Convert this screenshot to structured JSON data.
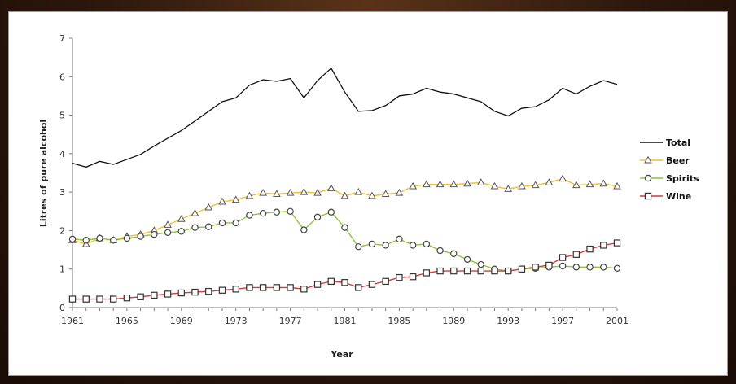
{
  "chart_data": {
    "type": "line",
    "xlabel": "Year",
    "ylabel": "Litres of pure alcohol",
    "xlim": [
      1961,
      2001
    ],
    "ylim": [
      0,
      7
    ],
    "x_ticks": [
      1961,
      1965,
      1969,
      1973,
      1977,
      1981,
      1985,
      1989,
      1993,
      1997,
      2001
    ],
    "y_ticks": [
      0,
      1,
      2,
      3,
      4,
      5,
      6,
      7
    ],
    "grid": false,
    "legend_position": "right",
    "x": [
      1961,
      1962,
      1963,
      1964,
      1965,
      1966,
      1967,
      1968,
      1969,
      1970,
      1971,
      1972,
      1973,
      1974,
      1975,
      1976,
      1977,
      1978,
      1979,
      1980,
      1981,
      1982,
      1983,
      1984,
      1985,
      1986,
      1987,
      1988,
      1989,
      1990,
      1991,
      1992,
      1993,
      1994,
      1995,
      1996,
      1997,
      1998,
      1999,
      2000,
      2001
    ],
    "series": [
      {
        "name": "Total",
        "color": "#111111",
        "marker": "none",
        "values": [
          3.75,
          3.65,
          3.8,
          3.72,
          3.85,
          3.98,
          4.2,
          4.4,
          4.6,
          4.85,
          5.1,
          5.35,
          5.45,
          5.78,
          5.92,
          5.88,
          5.95,
          5.45,
          5.9,
          6.22,
          5.6,
          5.1,
          5.12,
          5.25,
          5.5,
          5.55,
          5.7,
          5.6,
          5.55,
          5.45,
          5.35,
          5.1,
          4.98,
          5.18,
          5.22,
          5.4,
          5.7,
          5.55,
          5.75,
          5.9,
          5.8
        ]
      },
      {
        "name": "Beer",
        "color": "#f0c030",
        "marker": "triangle",
        "values": [
          1.75,
          1.65,
          1.8,
          1.75,
          1.85,
          1.9,
          2.0,
          2.15,
          2.3,
          2.45,
          2.6,
          2.75,
          2.8,
          2.9,
          2.98,
          2.95,
          2.98,
          3.0,
          2.98,
          3.1,
          2.9,
          3.0,
          2.9,
          2.95,
          2.98,
          3.15,
          3.2,
          3.2,
          3.2,
          3.22,
          3.25,
          3.15,
          3.08,
          3.15,
          3.18,
          3.25,
          3.35,
          3.18,
          3.2,
          3.22,
          3.15
        ]
      },
      {
        "name": "Spirits",
        "color": "#8cc63e",
        "marker": "circle",
        "values": [
          1.78,
          1.75,
          1.8,
          1.75,
          1.8,
          1.85,
          1.9,
          1.95,
          1.98,
          2.08,
          2.1,
          2.2,
          2.2,
          2.4,
          2.45,
          2.48,
          2.5,
          2.02,
          2.35,
          2.48,
          2.08,
          1.58,
          1.65,
          1.62,
          1.78,
          1.62,
          1.65,
          1.48,
          1.4,
          1.25,
          1.12,
          1.0,
          0.95,
          1.0,
          1.02,
          1.05,
          1.08,
          1.05,
          1.05,
          1.05,
          1.02
        ]
      },
      {
        "name": "Wine",
        "color": "#d63a3a",
        "marker": "square",
        "values": [
          0.22,
          0.22,
          0.22,
          0.22,
          0.25,
          0.28,
          0.32,
          0.35,
          0.38,
          0.4,
          0.42,
          0.45,
          0.48,
          0.52,
          0.52,
          0.52,
          0.52,
          0.48,
          0.6,
          0.68,
          0.65,
          0.52,
          0.6,
          0.68,
          0.78,
          0.8,
          0.9,
          0.95,
          0.95,
          0.95,
          0.95,
          0.95,
          0.95,
          1.0,
          1.05,
          1.1,
          1.3,
          1.38,
          1.52,
          1.62,
          1.68
        ]
      }
    ]
  }
}
